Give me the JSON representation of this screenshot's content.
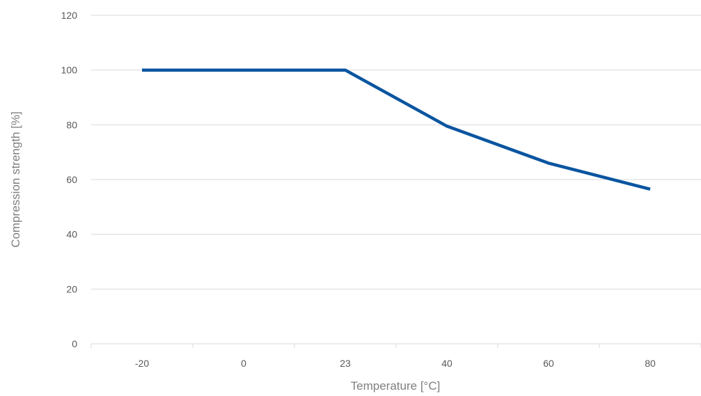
{
  "chart_data": {
    "type": "line",
    "categories": [
      "-20",
      "0",
      "23",
      "40",
      "60",
      "80"
    ],
    "series": [
      {
        "values": [
          100,
          100,
          100,
          79.5,
          66,
          56.5
        ],
        "color": "#0a55a0"
      }
    ],
    "xlabel": "Temperature [°C]",
    "ylabel": "Compression strength [%]",
    "ylim": [
      0,
      120
    ],
    "yticks": [
      0,
      20,
      40,
      60,
      80,
      100,
      120
    ],
    "grid": "horizontal",
    "gridColor": "#d9d9d9",
    "legend": "none"
  }
}
